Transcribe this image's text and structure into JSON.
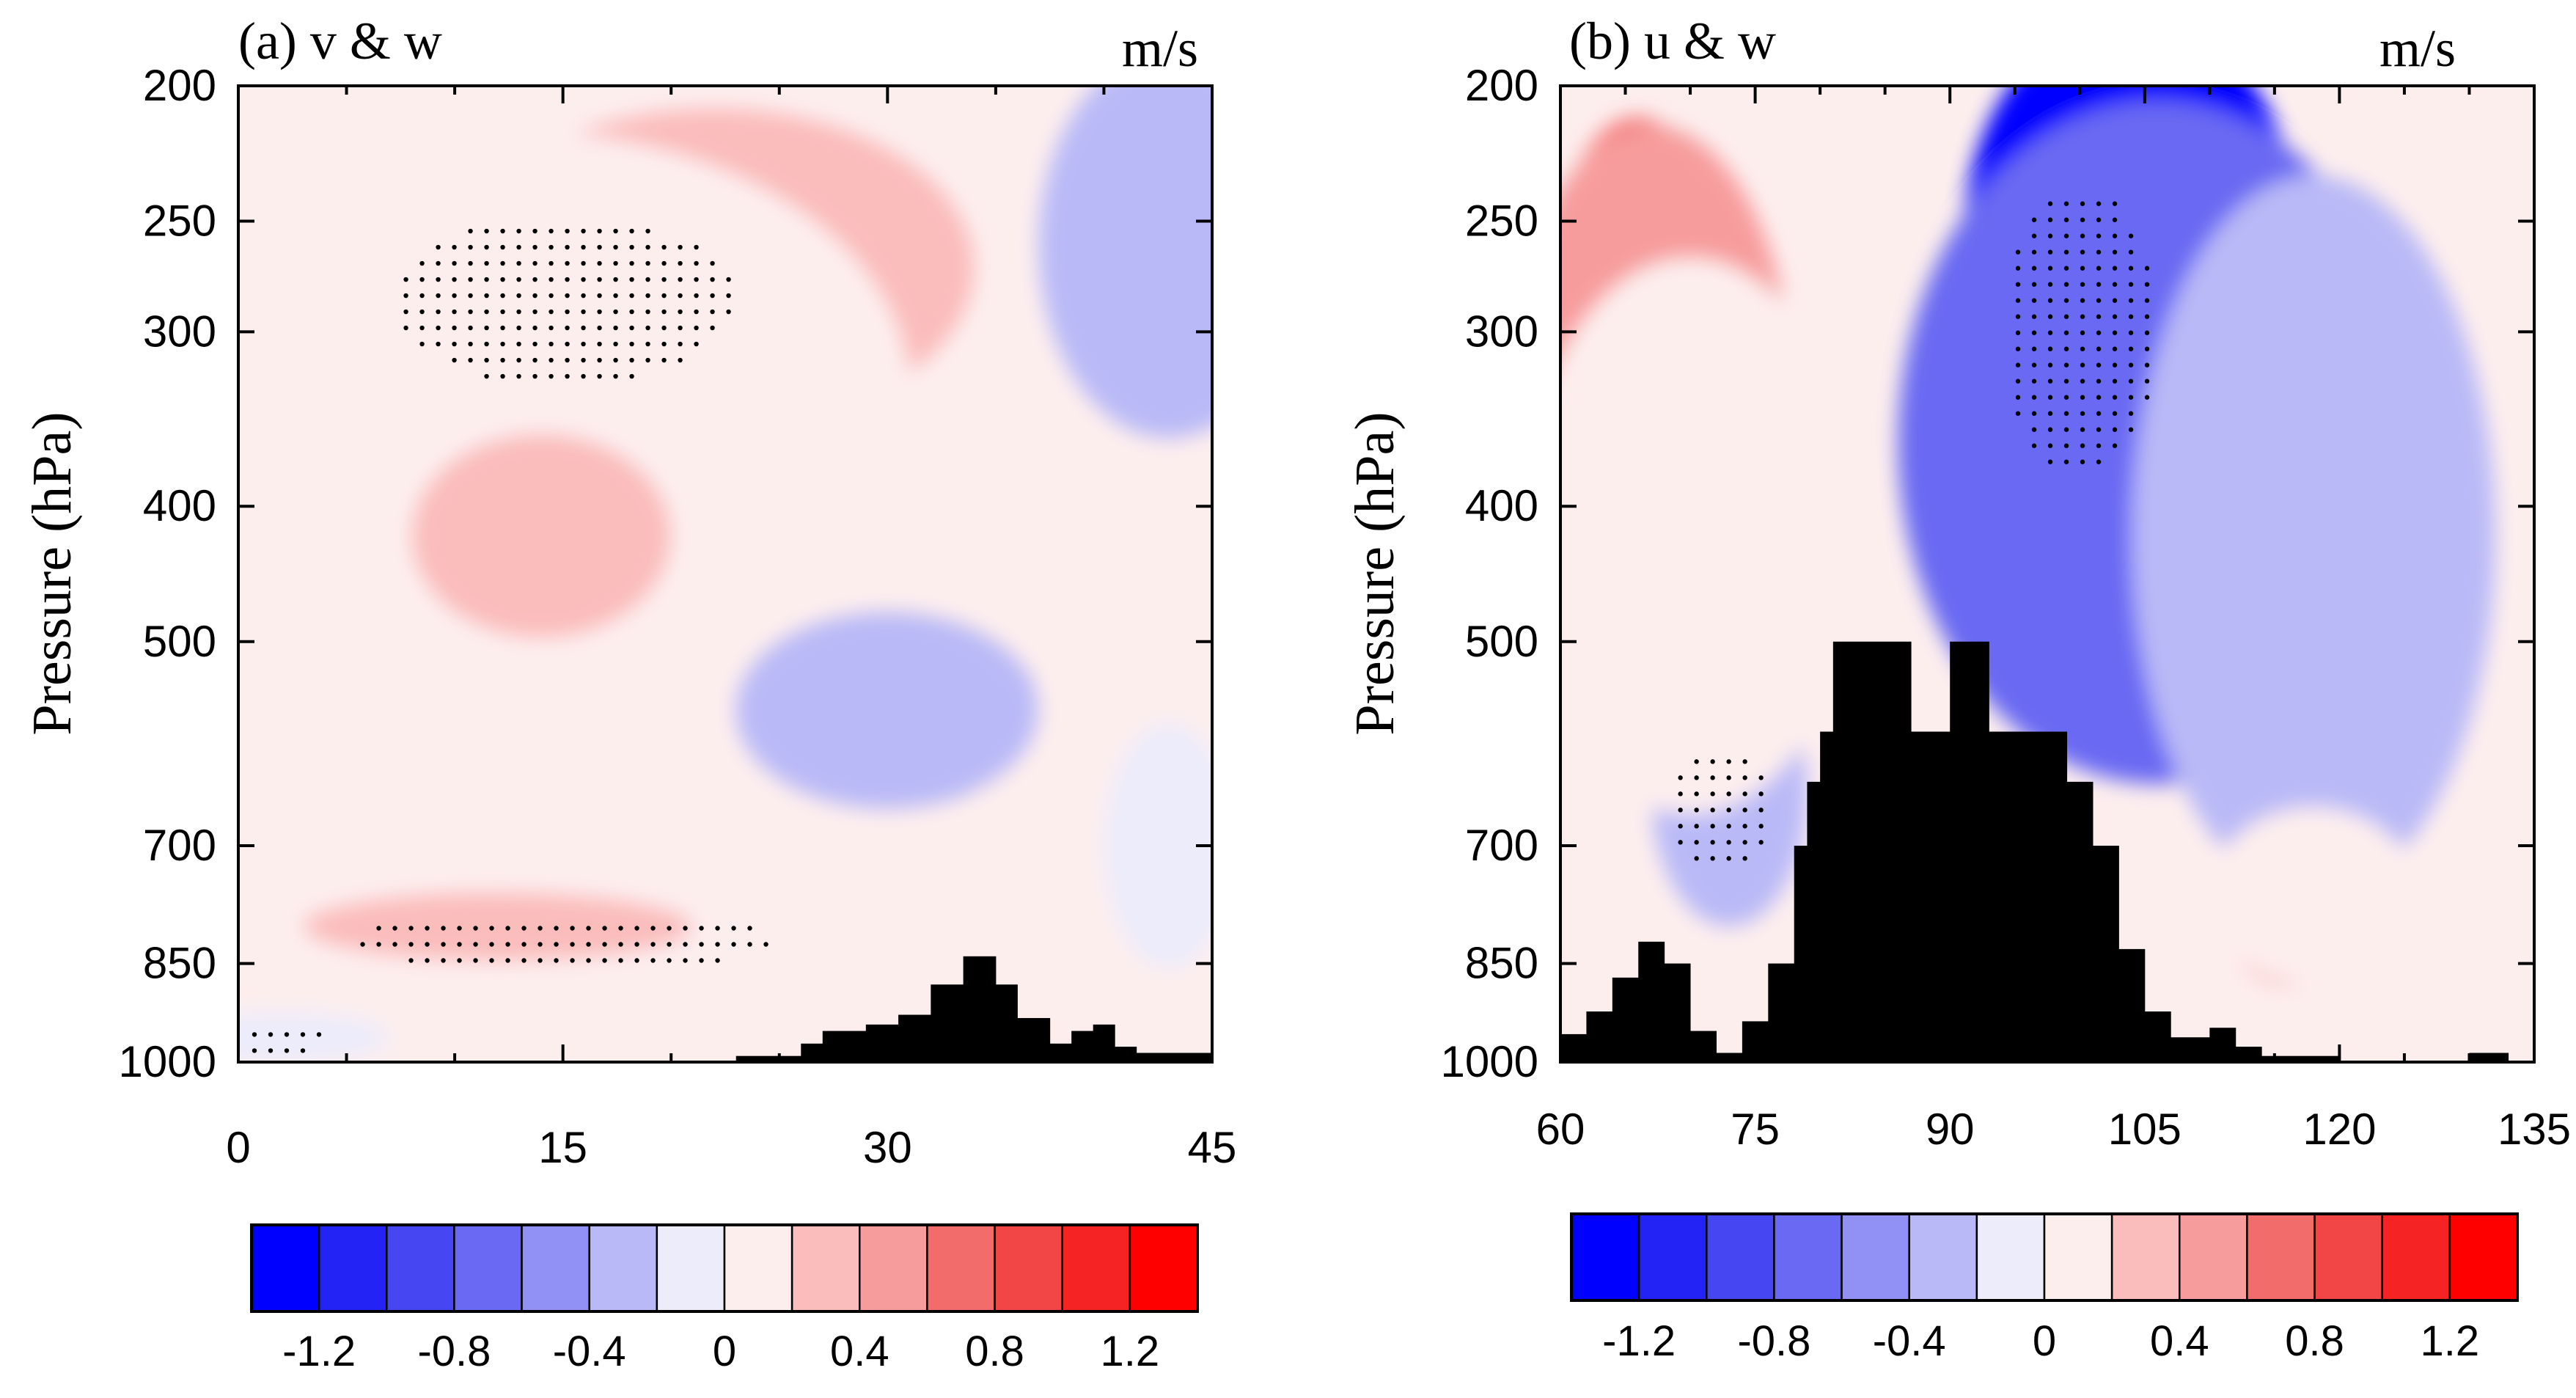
{
  "figure": {
    "type": "contour-filled cross sections",
    "colors": {
      "scale": [
        "#0000ff",
        "#2323f5",
        "#4646f3",
        "#6969f3",
        "#9191f5",
        "#b9b9f7",
        "#ececfb",
        "#fdeeee",
        "#fbbcbc",
        "#f79c9c",
        "#f36c6c",
        "#f24646",
        "#f52323",
        "#ff0000"
      ],
      "terrain": "#000000"
    }
  },
  "chart_data": [
    {
      "type": "heatmap",
      "title": "(a) v & w",
      "unit": "m/s",
      "ylabel": "Pressure (hPa)",
      "xlabel": "",
      "xlim": [
        0,
        45
      ],
      "xticks": [
        0,
        15,
        30,
        45
      ],
      "xtick_labels": [
        "0",
        "15",
        "30",
        "45"
      ],
      "ylim": [
        1000,
        200
      ],
      "yticks": [
        200,
        250,
        300,
        400,
        500,
        700,
        850,
        1000
      ],
      "ytick_labels": [
        "200",
        "250",
        "300",
        "400",
        "500",
        "700",
        "850",
        "1000"
      ],
      "colorbar": {
        "levels": [
          -1.2,
          -1.0,
          -0.8,
          -0.6,
          -0.4,
          -0.2,
          0,
          0.2,
          0.4,
          0.6,
          0.8,
          1.0,
          1.2
        ],
        "tick_labels": [
          "-1.2",
          "-0.8",
          "-0.4",
          "0",
          "0.4",
          "0.8",
          "1.2"
        ]
      },
      "features": [
        {
          "kind": "positive",
          "level": 2,
          "x": 22,
          "p": 270,
          "sx": 12,
          "sp": 70
        },
        {
          "kind": "positive",
          "level": 1,
          "x": 13,
          "p": 330,
          "sx": 18,
          "sp": 140
        },
        {
          "kind": "positive",
          "level": 2,
          "x": 14,
          "p": 420,
          "sx": 6,
          "sp": 70
        },
        {
          "kind": "positive",
          "level": 1,
          "x": 15,
          "p": 820,
          "sx": 12,
          "sp": 70
        },
        {
          "kind": "positive",
          "level": 2,
          "x": 12,
          "p": 800,
          "sx": 9,
          "sp": 45
        },
        {
          "kind": "positive",
          "level": 1,
          "x": 37,
          "p": 600,
          "sx": 4,
          "sp": 60
        },
        {
          "kind": "negative",
          "level": 2,
          "x": 43,
          "p": 260,
          "sx": 6,
          "sp": 120
        },
        {
          "kind": "negative",
          "level": 2,
          "x": 30,
          "p": 560,
          "sx": 7,
          "sp": 90
        },
        {
          "kind": "negative",
          "level": 1,
          "x": 2,
          "p": 960,
          "sx": 5,
          "sp": 40
        },
        {
          "kind": "negative",
          "level": 1,
          "x": 43,
          "p": 700,
          "sx": 3,
          "sp": 140
        }
      ],
      "stippling": [
        {
          "x": 15,
          "p": 285,
          "sx": 8,
          "sp": 40
        },
        {
          "x": 15,
          "p": 820,
          "sx": 10,
          "sp": 40
        },
        {
          "x": 2,
          "p": 960,
          "sx": 2,
          "sp": 30
        }
      ],
      "terrain": [
        {
          "x0": 23,
          "x1": 26,
          "p": 990
        },
        {
          "x0": 26,
          "x1": 27,
          "p": 970
        },
        {
          "x0": 27,
          "x1": 29,
          "p": 950
        },
        {
          "x0": 29,
          "x1": 30.5,
          "p": 940
        },
        {
          "x0": 30.5,
          "x1": 32,
          "p": 925
        },
        {
          "x0": 32,
          "x1": 33.5,
          "p": 880
        },
        {
          "x0": 33.5,
          "x1": 35,
          "p": 840
        },
        {
          "x0": 35,
          "x1": 36,
          "p": 880
        },
        {
          "x0": 36,
          "x1": 37.5,
          "p": 930
        },
        {
          "x0": 37.5,
          "x1": 38.5,
          "p": 970
        },
        {
          "x0": 38.5,
          "x1": 39.5,
          "p": 950
        },
        {
          "x0": 39.5,
          "x1": 40.5,
          "p": 940
        },
        {
          "x0": 40.5,
          "x1": 41.5,
          "p": 975
        },
        {
          "x0": 41.5,
          "x1": 45,
          "p": 985
        }
      ]
    },
    {
      "type": "heatmap",
      "title": "(b) u & w",
      "unit": "m/s",
      "ylabel": "Pressure (hPa)",
      "xlabel": "",
      "xlim": [
        60,
        135
      ],
      "xticks": [
        60,
        75,
        90,
        105,
        120,
        135
      ],
      "xtick_labels": [
        "60",
        "75",
        "90",
        "105",
        "120",
        "135"
      ],
      "ylim": [
        1000,
        200
      ],
      "yticks": [
        200,
        250,
        300,
        400,
        500,
        700,
        850,
        1000
      ],
      "ytick_labels": [
        "200",
        "250",
        "300",
        "400",
        "500",
        "700",
        "850",
        "1000"
      ],
      "colorbar": {
        "levels": [
          -1.2,
          -1.0,
          -0.8,
          -0.6,
          -0.4,
          -0.2,
          0,
          0.2,
          0.4,
          0.6,
          0.8,
          1.0,
          1.2
        ],
        "tick_labels": [
          "-1.2",
          "-0.8",
          "-0.4",
          "0",
          "0.4",
          "0.8",
          "1.2"
        ]
      },
      "features": [
        {
          "kind": "negative",
          "level": 7,
          "x": 104,
          "p": 260,
          "sx": 13,
          "sp": 170
        },
        {
          "kind": "negative",
          "level": 4,
          "x": 106,
          "p": 360,
          "sx": 20,
          "sp": 260
        },
        {
          "kind": "negative",
          "level": 2,
          "x": 118,
          "p": 420,
          "sx": 14,
          "sp": 240
        },
        {
          "kind": "negative",
          "level": 2,
          "x": 73,
          "p": 640,
          "sx": 6,
          "sp": 140
        },
        {
          "kind": "positive",
          "level": 5,
          "x": 66,
          "p": 290,
          "sx": 7,
          "sp": 90
        },
        {
          "kind": "positive",
          "level": 3,
          "x": 67,
          "p": 340,
          "sx": 11,
          "sp": 170
        },
        {
          "kind": "positive",
          "level": 1,
          "x": 70,
          "p": 420,
          "sx": 13,
          "sp": 180
        },
        {
          "kind": "positive",
          "level": 2,
          "x": 116,
          "p": 820,
          "sx": 4,
          "sp": 60
        },
        {
          "kind": "positive",
          "level": 1,
          "x": 118,
          "p": 760,
          "sx": 8,
          "sp": 110
        }
      ],
      "stippling": [
        {
          "x": 100,
          "p": 300,
          "sx": 6,
          "sp": 70
        },
        {
          "x": 72,
          "p": 660,
          "sx": 4,
          "sp": 70
        }
      ],
      "terrain": [
        {
          "x0": 60,
          "x1": 62,
          "p": 955
        },
        {
          "x0": 62,
          "x1": 64,
          "p": 920
        },
        {
          "x0": 64,
          "x1": 66,
          "p": 870
        },
        {
          "x0": 66,
          "x1": 68,
          "p": 820
        },
        {
          "x0": 68,
          "x1": 70,
          "p": 850
        },
        {
          "x0": 70,
          "x1": 72,
          "p": 950
        },
        {
          "x0": 72,
          "x1": 74,
          "p": 985
        },
        {
          "x0": 74,
          "x1": 76,
          "p": 935
        },
        {
          "x0": 76,
          "x1": 78,
          "p": 850
        },
        {
          "x0": 78,
          "x1": 79,
          "p": 700
        },
        {
          "x0": 79,
          "x1": 80,
          "p": 630
        },
        {
          "x0": 80,
          "x1": 81,
          "p": 580
        },
        {
          "x0": 81,
          "x1": 87,
          "p": 500
        },
        {
          "x0": 87,
          "x1": 90,
          "p": 580
        },
        {
          "x0": 90,
          "x1": 93,
          "p": 500
        },
        {
          "x0": 93,
          "x1": 99,
          "p": 580
        },
        {
          "x0": 99,
          "x1": 101,
          "p": 630
        },
        {
          "x0": 101,
          "x1": 103,
          "p": 700
        },
        {
          "x0": 103,
          "x1": 105,
          "p": 830
        },
        {
          "x0": 105,
          "x1": 107,
          "p": 920
        },
        {
          "x0": 107,
          "x1": 110,
          "p": 960
        },
        {
          "x0": 110,
          "x1": 112,
          "p": 945
        },
        {
          "x0": 112,
          "x1": 114,
          "p": 975
        },
        {
          "x0": 114,
          "x1": 120,
          "p": 990
        },
        {
          "x0": 130,
          "x1": 133,
          "p": 985
        }
      ]
    }
  ]
}
